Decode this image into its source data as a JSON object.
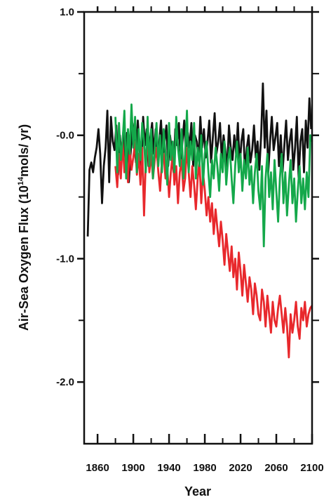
{
  "chart_data": {
    "type": "line",
    "xlabel": "Year",
    "ylabel": {
      "prefix": "Air-Sea Oxygen Flux (10",
      "sup": "14",
      "suffix": "mols/ yr)"
    },
    "xlim": [
      1845,
      2100
    ],
    "ylim": [
      -2.5,
      1.0
    ],
    "grid": false,
    "legend": "none",
    "x_ticks": [
      {
        "value": 1860,
        "label": "1860"
      },
      {
        "value": 1900,
        "label": "1900"
      },
      {
        "value": 1940,
        "label": "1940"
      },
      {
        "value": 1980,
        "label": "1980"
      },
      {
        "value": 2020,
        "label": "2020"
      },
      {
        "value": 2060,
        "label": "2060"
      },
      {
        "value": 2100,
        "label": "2100"
      }
    ],
    "y_ticks": [
      {
        "value": 1.0,
        "label": "1.0"
      },
      {
        "value": 0.0,
        "label": "-0.0"
      },
      {
        "value": -1.0,
        "label": "-1.0"
      },
      {
        "value": -2.0,
        "label": "-2.0"
      }
    ],
    "series": [
      {
        "color": "#111111",
        "x": [
          1849,
          1851,
          1853,
          1855,
          1857,
          1859,
          1861,
          1863,
          1865,
          1867,
          1869,
          1871,
          1873,
          1875,
          1877,
          1879,
          1881,
          1883,
          1885,
          1887,
          1889,
          1891,
          1893,
          1895,
          1897,
          1899,
          1901,
          1903,
          1905,
          1907,
          1909,
          1911,
          1913,
          1915,
          1917,
          1919,
          1921,
          1923,
          1925,
          1927,
          1929,
          1931,
          1933,
          1935,
          1937,
          1939,
          1941,
          1943,
          1945,
          1947,
          1949,
          1951,
          1953,
          1955,
          1957,
          1959,
          1961,
          1963,
          1965,
          1967,
          1969,
          1971,
          1973,
          1975,
          1977,
          1979,
          1981,
          1983,
          1985,
          1987,
          1989,
          1991,
          1993,
          1995,
          1997,
          1999,
          2001,
          2003,
          2005,
          2007,
          2009,
          2011,
          2013,
          2015,
          2017,
          2019,
          2021,
          2023,
          2025,
          2027,
          2029,
          2031,
          2033,
          2035,
          2037,
          2039,
          2041,
          2043,
          2045,
          2047,
          2049,
          2051,
          2053,
          2055,
          2057,
          2059,
          2061,
          2063,
          2065,
          2067,
          2069,
          2071,
          2073,
          2075,
          2077,
          2079,
          2081,
          2083,
          2085,
          2087,
          2089,
          2091,
          2093,
          2095,
          2097,
          2099
        ],
        "y": [
          -0.82,
          -0.28,
          -0.22,
          -0.3,
          -0.18,
          -0.1,
          0.05,
          -0.15,
          -0.55,
          -0.25,
          -0.1,
          0.2,
          -0.38,
          0.15,
          -0.05,
          -0.12,
          0.08,
          -0.32,
          0.0,
          -0.2,
          0.05,
          -0.28,
          0.02,
          -0.38,
          -0.15,
          0.1,
          -0.05,
          -0.22,
          0.12,
          -0.1,
          -0.3,
          0.15,
          -0.08,
          0.05,
          -0.25,
          -0.02,
          0.1,
          -0.15,
          0.05,
          -0.2,
          -0.05,
          0.12,
          -0.18,
          -0.05,
          0.08,
          -0.25,
          0.0,
          -0.12,
          -0.3,
          0.05,
          -0.08,
          0.1,
          -0.22,
          -0.05,
          0.12,
          -0.15,
          0.02,
          -0.1,
          0.1,
          -0.25,
          0.0,
          -0.05,
          -0.2,
          0.15,
          -0.1,
          0.05,
          -0.18,
          -0.05,
          0.12,
          -0.22,
          -0.02,
          0.18,
          -0.15,
          -0.05,
          0.1,
          -0.2,
          0.0,
          -0.12,
          -0.28,
          0.08,
          -0.1,
          -0.2,
          0.0,
          -0.15,
          0.1,
          -0.25,
          -0.05,
          0.05,
          -0.3,
          -0.1,
          0.0,
          -0.22,
          -0.12,
          0.08,
          -0.18,
          -0.05,
          -0.28,
          0.0,
          0.42,
          -0.1,
          0.2,
          -0.3,
          -0.05,
          0.15,
          -0.12,
          -0.02,
          0.1,
          -0.25,
          0.0,
          -0.3,
          -0.08,
          0.12,
          -0.2,
          -0.05,
          0.05,
          -0.28,
          -0.1,
          0.15,
          -0.35,
          -0.05,
          0.05,
          -0.3,
          0.12,
          -0.1,
          0.3,
          0.05
        ]
      },
      {
        "color": "#e8282c",
        "x": [
          1880,
          1882,
          1884,
          1886,
          1888,
          1890,
          1892,
          1894,
          1896,
          1898,
          1900,
          1902,
          1904,
          1906,
          1908,
          1910,
          1912,
          1914,
          1916,
          1918,
          1920,
          1922,
          1924,
          1926,
          1928,
          1930,
          1932,
          1934,
          1936,
          1938,
          1940,
          1942,
          1944,
          1946,
          1948,
          1950,
          1952,
          1954,
          1956,
          1958,
          1960,
          1962,
          1964,
          1966,
          1968,
          1970,
          1972,
          1974,
          1976,
          1978,
          1980,
          1982,
          1984,
          1986,
          1988,
          1990,
          1992,
          1994,
          1996,
          1998,
          2000,
          2002,
          2004,
          2006,
          2008,
          2010,
          2012,
          2014,
          2016,
          2018,
          2020,
          2022,
          2024,
          2026,
          2028,
          2030,
          2032,
          2034,
          2036,
          2038,
          2040,
          2042,
          2044,
          2046,
          2048,
          2050,
          2052,
          2054,
          2056,
          2058,
          2060,
          2062,
          2064,
          2066,
          2068,
          2070,
          2072,
          2074,
          2076,
          2078,
          2080,
          2082,
          2084,
          2086,
          2088,
          2090,
          2092,
          2094,
          2096,
          2098,
          2100
        ],
        "y": [
          -0.25,
          -0.42,
          -0.15,
          -0.35,
          -0.05,
          -0.3,
          -0.12,
          -0.38,
          -0.1,
          -0.28,
          -0.18,
          -0.05,
          -0.32,
          -0.15,
          -0.4,
          -0.1,
          -0.65,
          -0.2,
          -0.05,
          -0.3,
          -0.15,
          -0.35,
          -0.2,
          -0.1,
          -0.3,
          -0.45,
          -0.2,
          -0.15,
          -0.35,
          -0.25,
          -0.5,
          -0.3,
          -0.15,
          -0.4,
          -0.25,
          -0.55,
          -0.3,
          -0.2,
          -0.45,
          -0.35,
          -0.1,
          -0.3,
          -0.5,
          -0.25,
          -0.4,
          -0.6,
          -0.35,
          -0.2,
          -0.55,
          -0.3,
          -0.45,
          -0.65,
          -0.5,
          -0.7,
          -0.55,
          -0.8,
          -0.6,
          -0.75,
          -0.9,
          -0.7,
          -0.85,
          -1.05,
          -0.8,
          -0.95,
          -1.1,
          -0.9,
          -1.15,
          -1.0,
          -1.25,
          -0.95,
          -1.1,
          -1.3,
          -1.05,
          -1.2,
          -1.35,
          -1.15,
          -1.25,
          -1.45,
          -1.2,
          -1.3,
          -1.45,
          -1.5,
          -1.25,
          -1.35,
          -1.55,
          -1.3,
          -1.45,
          -1.6,
          -1.35,
          -1.5,
          -1.55,
          -1.4,
          -1.3,
          -1.45,
          -1.6,
          -1.4,
          -1.55,
          -1.8,
          -1.45,
          -1.6,
          -1.5,
          -1.35,
          -1.55,
          -1.65,
          -1.4,
          -1.5,
          -1.35,
          -1.55,
          -1.45,
          -1.4,
          -1.38
        ]
      },
      {
        "color": "#14a84a",
        "x": [
          1880,
          1882,
          1884,
          1886,
          1888,
          1890,
          1892,
          1894,
          1896,
          1898,
          1900,
          1902,
          1904,
          1906,
          1908,
          1910,
          1912,
          1914,
          1916,
          1918,
          1920,
          1922,
          1924,
          1926,
          1928,
          1930,
          1932,
          1934,
          1936,
          1938,
          1940,
          1942,
          1944,
          1946,
          1948,
          1950,
          1952,
          1954,
          1956,
          1958,
          1960,
          1962,
          1964,
          1966,
          1968,
          1970,
          1972,
          1974,
          1976,
          1978,
          1980,
          1982,
          1984,
          1986,
          1988,
          1990,
          1992,
          1994,
          1996,
          1998,
          2000,
          2002,
          2004,
          2006,
          2008,
          2010,
          2012,
          2014,
          2016,
          2018,
          2020,
          2022,
          2024,
          2026,
          2028,
          2030,
          2032,
          2034,
          2036,
          2038,
          2040,
          2042,
          2044,
          2046,
          2048,
          2050,
          2052,
          2054,
          2056,
          2058,
          2060,
          2062,
          2064,
          2066,
          2068,
          2070,
          2072,
          2074,
          2076,
          2078,
          2080,
          2082,
          2084,
          2086,
          2088,
          2090,
          2092,
          2094,
          2096,
          2098,
          2100
        ],
        "y": [
          0.15,
          -0.3,
          0.1,
          -0.2,
          -0.05,
          0.2,
          -0.35,
          0.05,
          -0.15,
          0.25,
          -0.1,
          0.15,
          -0.3,
          0.05,
          -0.2,
          0.1,
          -0.05,
          -0.3,
          0.15,
          -0.25,
          0.05,
          -0.35,
          -0.1,
          0.1,
          -0.25,
          0.0,
          -0.3,
          0.05,
          -0.15,
          -0.4,
          0.1,
          -0.2,
          -0.05,
          -0.3,
          0.15,
          -0.1,
          -0.25,
          0.05,
          -0.35,
          -0.15,
          0.2,
          -0.3,
          -0.05,
          -0.2,
          0.1,
          -0.35,
          -0.1,
          -0.25,
          0.0,
          -0.4,
          -0.15,
          -0.05,
          -0.3,
          -0.5,
          -0.2,
          -0.35,
          -0.1,
          -0.25,
          -0.45,
          -0.15,
          -0.3,
          -0.05,
          -0.4,
          -0.2,
          -0.1,
          -0.35,
          -0.55,
          -0.25,
          -0.05,
          -0.3,
          -0.15,
          -0.45,
          -0.2,
          -0.35,
          -0.1,
          -0.4,
          -0.25,
          -0.55,
          -0.3,
          -0.15,
          -0.45,
          -0.6,
          -0.25,
          -0.9,
          -0.35,
          -0.15,
          -0.5,
          -0.3,
          -0.6,
          -0.2,
          -0.45,
          -0.7,
          -0.35,
          -0.15,
          -0.55,
          -0.3,
          -0.65,
          -0.4,
          -0.2,
          -0.55,
          -0.35,
          -0.7,
          -0.45,
          -0.25,
          -0.55,
          -0.35,
          -0.6,
          -0.3,
          -0.5,
          0.0,
          -0.05
        ]
      }
    ]
  }
}
